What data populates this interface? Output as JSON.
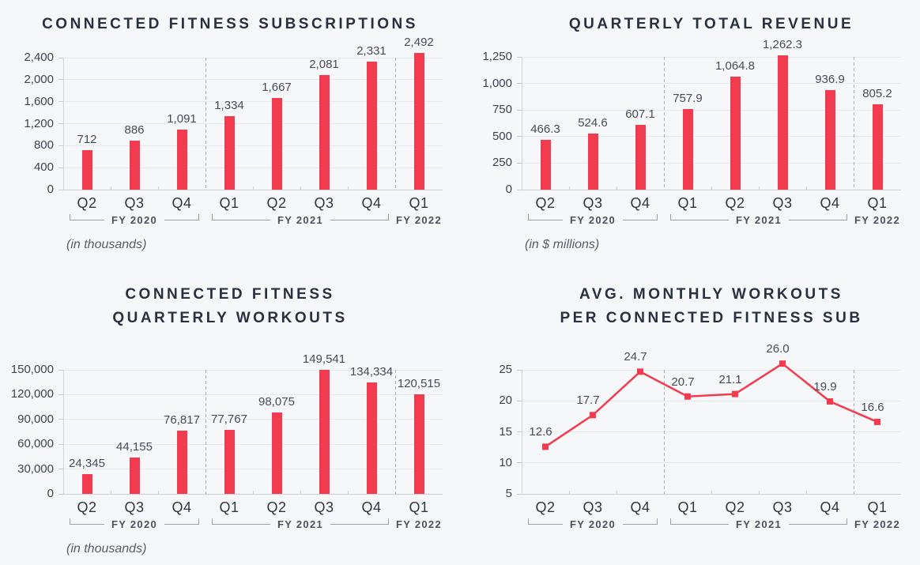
{
  "page": {
    "background": "#f6f7f8"
  },
  "colors": {
    "accent": "#f23b4f",
    "title": "#273140",
    "grid": "#e8e9ec",
    "separator": "#aab0b8"
  },
  "chart_data": [
    {
      "id": "connected-fitness-subscriptions",
      "type": "bar",
      "title_lines": [
        "CONNECTED FITNESS SUBSCRIPTIONS"
      ],
      "note": "(in thousands)",
      "categories": [
        "Q2",
        "Q3",
        "Q4",
        "Q1",
        "Q2",
        "Q3",
        "Q4",
        "Q1"
      ],
      "groups": [
        {
          "label": "FY 2020",
          "span": 3
        },
        {
          "label": "FY 2021",
          "span": 4
        },
        {
          "label": "FY 2022",
          "span": 1
        }
      ],
      "values": [
        712,
        886,
        1091,
        1334,
        1667,
        2081,
        2331,
        2492
      ],
      "value_labels": [
        "712",
        "886",
        "1,091",
        "1,334",
        "1,667",
        "2,081",
        "2,331",
        "2,492"
      ],
      "y_ticks": [
        0,
        400,
        800,
        1200,
        1600,
        2000,
        2400
      ],
      "y_tick_labels": [
        "0",
        "400",
        "800",
        "1,200",
        "1,600",
        "2,000",
        "2,400"
      ],
      "ylim": [
        0,
        2400
      ],
      "grid": true
    },
    {
      "id": "quarterly-total-revenue",
      "type": "bar",
      "title_lines": [
        "QUARTERLY TOTAL REVENUE"
      ],
      "note": "(in $ millions)",
      "categories": [
        "Q2",
        "Q3",
        "Q4",
        "Q1",
        "Q2",
        "Q3",
        "Q4",
        "Q1"
      ],
      "groups": [
        {
          "label": "FY 2020",
          "span": 3
        },
        {
          "label": "FY 2021",
          "span": 4
        },
        {
          "label": "FY 2022",
          "span": 1
        }
      ],
      "values": [
        466.3,
        524.6,
        607.1,
        757.9,
        1064.8,
        1262.3,
        936.9,
        805.2
      ],
      "value_labels": [
        "466.3",
        "524.6",
        "607.1",
        "757.9",
        "1,064.8",
        "1,262.3",
        "936.9",
        "805.2"
      ],
      "y_ticks": [
        0,
        250,
        500,
        750,
        1000,
        1250
      ],
      "y_tick_labels": [
        "0",
        "250",
        "500",
        "750",
        "1,000",
        "1,250"
      ],
      "ylim": [
        0,
        1250
      ],
      "grid": true
    },
    {
      "id": "connected-fitness-quarterly-workouts",
      "type": "bar",
      "title_lines": [
        "CONNECTED FITNESS",
        "QUARTERLY WORKOUTS"
      ],
      "note": "(in thousands)",
      "categories": [
        "Q2",
        "Q3",
        "Q4",
        "Q1",
        "Q2",
        "Q3",
        "Q4",
        "Q1"
      ],
      "groups": [
        {
          "label": "FY 2020",
          "span": 3
        },
        {
          "label": "FY 2021",
          "span": 4
        },
        {
          "label": "FY 2022",
          "span": 1
        }
      ],
      "values": [
        24345,
        44155,
        76817,
        77767,
        98075,
        149541,
        134334,
        120515
      ],
      "value_labels": [
        "24,345",
        "44,155",
        "76,817",
        "77,767",
        "98,075",
        "149,541",
        "134,334",
        "120,515"
      ],
      "y_ticks": [
        0,
        30000,
        60000,
        90000,
        120000,
        150000
      ],
      "y_tick_labels": [
        "0",
        "30,000",
        "60,000",
        "90,000",
        "120,000",
        "150,000"
      ],
      "ylim": [
        0,
        150000
      ],
      "grid": true
    },
    {
      "id": "avg-monthly-workouts-per-connected-fitness-sub",
      "type": "line",
      "title_lines": [
        "AVG. MONTHLY WORKOUTS",
        "PER CONNECTED FITNESS SUB"
      ],
      "note": "",
      "categories": [
        "Q2",
        "Q3",
        "Q4",
        "Q1",
        "Q2",
        "Q3",
        "Q4",
        "Q1"
      ],
      "groups": [
        {
          "label": "FY 2020",
          "span": 3
        },
        {
          "label": "FY 2021",
          "span": 4
        },
        {
          "label": "FY 2022",
          "span": 1
        }
      ],
      "values": [
        12.6,
        17.7,
        24.7,
        20.7,
        21.1,
        26.0,
        19.9,
        16.6
      ],
      "value_labels": [
        "12.6",
        "17.7",
        "24.7",
        "20.7",
        "21.1",
        "26.0",
        "19.9",
        "16.6"
      ],
      "y_ticks": [
        5,
        10,
        15,
        20,
        25
      ],
      "y_tick_labels": [
        "5",
        "10",
        "15",
        "20",
        "25"
      ],
      "ylim": [
        5,
        25
      ],
      "marker": "square",
      "grid": true
    }
  ]
}
